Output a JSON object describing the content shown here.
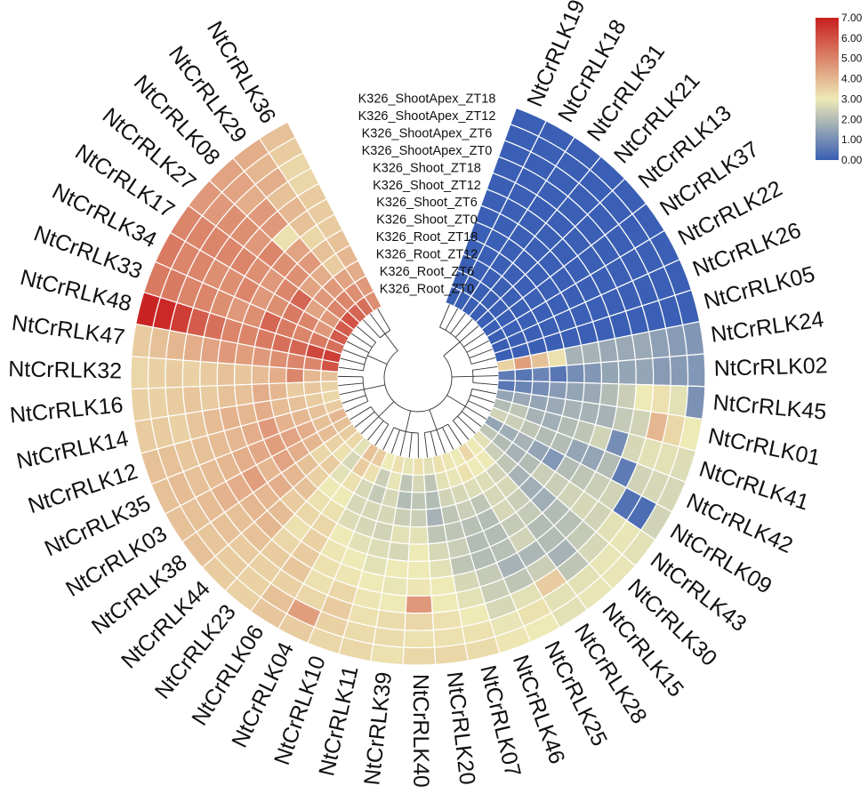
{
  "chart_data": {
    "type": "heatmap",
    "layout": "circular",
    "genes": [
      "NtCrRLK19",
      "NtCrRLK18",
      "NtCrRLK31",
      "NtCrRLK21",
      "NtCrRLK13",
      "NtCrRLK37",
      "NtCrRLK22",
      "NtCrRLK26",
      "NtCrRLK05",
      "NtCrRLK24",
      "NtCrRLK02",
      "NtCrRLK45",
      "NtCrRLK01",
      "NtCrRLK41",
      "NtCrRLK42",
      "NtCrRLK09",
      "NtCrRLK43",
      "NtCrRLK30",
      "NtCrRLK15",
      "NtCrRLK28",
      "NtCrRLK25",
      "NtCrRLK46",
      "NtCrRLK07",
      "NtCrRLK20",
      "NtCrRLK40",
      "NtCrRLK39",
      "NtCrRLK11",
      "NtCrRLK10",
      "NtCrRLK04",
      "NtCrRLK06",
      "NtCrRLK23",
      "NtCrRLK44",
      "NtCrRLK38",
      "NtCrRLK03",
      "NtCrRLK35",
      "NtCrRLK12",
      "NtCrRLK14",
      "NtCrRLK16",
      "NtCrRLK32",
      "NtCrRLK47",
      "NtCrRLK48",
      "NtCrRLK33",
      "NtCrRLK34",
      "NtCrRLK17",
      "NtCrRLK27",
      "NtCrRLK08",
      "NtCrRLK29",
      "NtCrRLK36"
    ],
    "samples": [
      "K326_Root_ZT0",
      "K326_Root_ZT6",
      "K326_Root_ZT12",
      "K326_Root_ZT18",
      "K326_Shoot_ZT0",
      "K326_Shoot_ZT6",
      "K326_Shoot_ZT12",
      "K326_Shoot_ZT18",
      "K326_ShootApex_ZT0",
      "K326_ShootApex_ZT6",
      "K326_ShootApex_ZT12",
      "K326_ShootApex_ZT18"
    ],
    "values": [
      [
        0,
        0,
        0,
        0,
        0,
        0,
        0,
        0,
        0,
        0,
        0,
        0
      ],
      [
        0,
        0,
        0,
        0,
        0,
        0,
        0,
        0,
        0,
        0,
        0,
        0
      ],
      [
        0,
        0,
        0,
        0,
        0,
        0,
        0,
        0,
        0,
        0,
        0,
        0
      ],
      [
        0,
        0,
        0,
        0,
        0,
        0,
        0,
        0,
        0,
        0,
        0,
        0
      ],
      [
        0,
        0,
        0,
        0,
        0,
        0,
        0,
        0,
        0,
        0,
        0,
        0
      ],
      [
        0,
        0,
        0,
        0,
        0,
        0,
        0,
        0,
        0,
        0,
        0,
        0
      ],
      [
        0,
        0,
        0,
        0,
        0,
        0,
        0,
        0,
        0,
        0,
        0,
        0
      ],
      [
        0,
        0,
        0,
        0,
        0,
        0,
        0,
        0,
        0,
        0,
        0,
        0
      ],
      [
        0,
        0,
        0,
        0,
        0,
        0,
        0,
        0,
        0,
        0,
        0,
        0
      ],
      [
        3.5,
        4.5,
        3.8,
        3.2,
        1.8,
        1.8,
        1.6,
        1.6,
        1.6,
        1.4,
        1.3,
        1.2
      ],
      [
        0.6,
        0.5,
        0.8,
        0.5,
        1.0,
        1.2,
        1.5,
        1.5,
        1.5,
        1.3,
        1.3,
        1.2
      ],
      [
        0.5,
        0.8,
        1.0,
        1.3,
        1.5,
        1.6,
        2.0,
        2.4,
        3.0,
        3.2,
        2.8,
        1.1
      ],
      [
        1.5,
        1.6,
        1.5,
        1.6,
        1.8,
        1.8,
        1.8,
        2.3,
        2.5,
        4.0,
        3.4,
        3.0
      ],
      [
        2.0,
        2.2,
        1.8,
        1.7,
        2.0,
        2.2,
        2.5,
        1.0,
        2.6,
        2.8,
        2.8,
        2.7
      ],
      [
        2.5,
        2.4,
        2.2,
        2.0,
        2.0,
        1.5,
        1.5,
        2.0,
        0.6,
        2.5,
        2.6,
        2.6
      ],
      [
        1.5,
        1.7,
        1.8,
        1.5,
        1.2,
        2.0,
        2.2,
        2.4,
        2.5,
        0.4,
        0.3,
        2.5
      ],
      [
        2.2,
        2.0,
        1.8,
        2.0,
        2.4,
        2.4,
        2.5,
        2.6,
        2.5,
        2.8,
        2.9,
        2.8
      ],
      [
        2.8,
        2.4,
        2.2,
        1.8,
        1.7,
        1.7,
        2.0,
        2.1,
        2.3,
        2.6,
        2.9,
        2.9
      ],
      [
        3.0,
        3.0,
        2.5,
        2.6,
        2.4,
        2.3,
        2.0,
        2.0,
        1.8,
        2.2,
        2.8,
        2.9
      ],
      [
        3.4,
        3.0,
        2.7,
        2.6,
        2.6,
        2.3,
        2.5,
        1.9,
        2.4,
        3.6,
        2.8,
        2.8
      ],
      [
        3.0,
        3.2,
        2.7,
        2.2,
        2.0,
        2.0,
        2.1,
        1.8,
        2.2,
        2.8,
        3.2,
        3.0
      ],
      [
        3.1,
        2.9,
        2.6,
        2.4,
        2.1,
        2.0,
        2.0,
        2.3,
        2.4,
        2.6,
        2.9,
        3.1
      ],
      [
        3.2,
        2.8,
        2.5,
        2.2,
        2.2,
        2.4,
        2.2,
        2.6,
        2.8,
        3.0,
        3.2,
        3.3
      ],
      [
        2.8,
        2.2,
        2.0,
        1.8,
        2.2,
        2.6,
        2.8,
        3.0,
        3.0,
        3.2,
        3.2,
        3.4
      ],
      [
        3.2,
        2.6,
        2.2,
        2.4,
        2.8,
        3.0,
        3.0,
        3.1,
        4.6,
        3.4,
        3.2,
        3.4
      ],
      [
        2.9,
        2.2,
        2.0,
        2.4,
        2.8,
        2.6,
        3.0,
        2.9,
        3.0,
        3.3,
        3.3,
        3.2
      ],
      [
        3.2,
        2.9,
        2.6,
        2.6,
        2.5,
        2.7,
        2.8,
        3.0,
        3.1,
        3.2,
        3.3,
        3.4
      ],
      [
        3.0,
        2.4,
        2.3,
        2.6,
        2.6,
        2.8,
        3.0,
        3.1,
        3.4,
        3.6,
        3.5,
        3.4
      ],
      [
        3.6,
        3.2,
        2.6,
        2.6,
        2.7,
        3.0,
        3.1,
        3.2,
        3.2,
        3.4,
        4.5,
        3.6
      ],
      [
        3.8,
        3.6,
        3.2,
        3.0,
        3.2,
        3.4,
        3.5,
        3.6,
        3.7,
        3.5,
        3.8,
        3.7
      ],
      [
        2.8,
        2.6,
        2.8,
        3.0,
        3.2,
        3.4,
        3.2,
        3.4,
        3.6,
        3.5,
        3.5,
        3.5
      ],
      [
        3.4,
        3.2,
        3.6,
        3.5,
        3.8,
        3.6,
        3.9,
        4.0,
        3.8,
        3.6,
        3.6,
        3.6
      ],
      [
        3.6,
        3.5,
        3.4,
        3.8,
        4.0,
        4.2,
        4.0,
        4.0,
        3.8,
        3.8,
        3.7,
        3.8
      ],
      [
        3.8,
        3.9,
        4.0,
        4.2,
        4.4,
        4.0,
        4.5,
        4.2,
        4.1,
        3.9,
        3.8,
        3.8
      ],
      [
        4.0,
        3.8,
        4.2,
        4.4,
        4.5,
        4.3,
        4.2,
        4.0,
        3.9,
        3.8,
        3.9,
        3.8
      ],
      [
        3.6,
        3.8,
        4.0,
        4.1,
        4.6,
        4.2,
        4.0,
        3.9,
        3.8,
        3.7,
        3.8,
        3.8
      ],
      [
        3.4,
        3.6,
        3.8,
        3.9,
        4.2,
        4.0,
        4.1,
        3.9,
        3.7,
        3.5,
        3.6,
        3.6
      ],
      [
        3.5,
        3.7,
        3.6,
        4.0,
        4.2,
        3.8,
        3.8,
        3.6,
        3.7,
        3.6,
        3.5,
        3.5
      ],
      [
        3.8,
        4.0,
        5.0,
        4.2,
        3.9,
        3.7,
        3.8,
        3.6,
        3.5,
        3.6,
        3.5,
        3.4
      ],
      [
        6.0,
        5.0,
        5.0,
        4.8,
        4.6,
        4.5,
        4.6,
        4.4,
        4.2,
        4.0,
        3.8,
        3.6
      ],
      [
        6.4,
        6.2,
        5.6,
        5.4,
        5.2,
        5.0,
        5.0,
        5.4,
        5.8,
        6.4,
        6.8,
        6.9
      ],
      [
        5.4,
        5.2,
        5.0,
        5.2,
        5.6,
        4.8,
        4.6,
        4.8,
        5.0,
        5.0,
        5.2,
        5.2
      ],
      [
        5.8,
        4.6,
        5.0,
        5.2,
        4.8,
        4.6,
        5.0,
        4.8,
        4.8,
        5.0,
        5.0,
        5.2
      ],
      [
        5.8,
        4.6,
        4.4,
        5.6,
        5.0,
        4.6,
        4.8,
        5.0,
        5.0,
        5.0,
        5.0,
        5.0
      ],
      [
        6.0,
        5.0,
        4.6,
        4.4,
        4.8,
        4.8,
        5.0,
        4.6,
        4.8,
        4.8,
        4.6,
        4.6
      ],
      [
        5.6,
        5.0,
        4.6,
        4.2,
        4.6,
        4.4,
        3.2,
        4.6,
        4.6,
        4.2,
        4.4,
        4.4
      ],
      [
        5.4,
        4.8,
        4.4,
        3.6,
        3.8,
        3.4,
        3.8,
        4.0,
        3.8,
        4.2,
        4.0,
        4.2
      ],
      [
        4.8,
        4.6,
        4.2,
        4.0,
        3.8,
        3.6,
        3.6,
        3.6,
        3.4,
        3.4,
        3.6,
        3.8
      ]
    ],
    "color_scale": {
      "min": 0,
      "max": 7,
      "colors": [
        "#3a5fb4",
        "#eeeab6",
        "#c81f1f"
      ],
      "ticks": [
        "0.00",
        "1.00",
        "2.00",
        "3.00",
        "4.00",
        "5.00",
        "6.00",
        "7.00"
      ]
    }
  }
}
